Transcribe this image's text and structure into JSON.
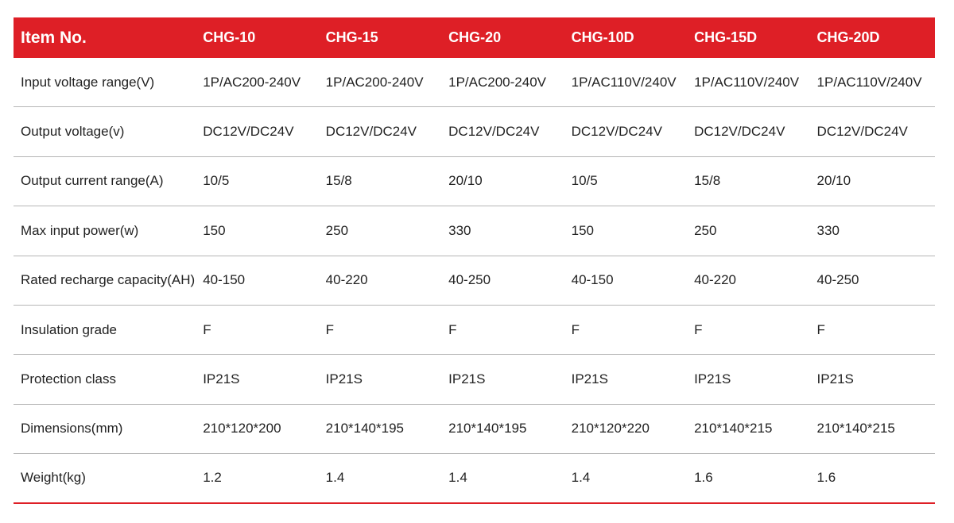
{
  "colors": {
    "accent": "#de1f26",
    "divider": "#b5b5b5",
    "text": "#222222"
  },
  "header": {
    "label": "Item No.",
    "models": [
      "CHG-10",
      "CHG-15",
      "CHG-20",
      "CHG-10D",
      "CHG-15D",
      "CHG-20D"
    ]
  },
  "rows": [
    {
      "label": "Input voltage range(V)",
      "values": [
        "1P/AC200-240V",
        "1P/AC200-240V",
        "1P/AC200-240V",
        "1P/AC110V/240V",
        "1P/AC110V/240V",
        "1P/AC110V/240V"
      ]
    },
    {
      "label": "Output voltage(v)",
      "values": [
        "DC12V/DC24V",
        "DC12V/DC24V",
        "DC12V/DC24V",
        "DC12V/DC24V",
        "DC12V/DC24V",
        "DC12V/DC24V"
      ]
    },
    {
      "label": "Output current range(A)",
      "values": [
        "10/5",
        "15/8",
        "20/10",
        "10/5",
        "15/8",
        "20/10"
      ]
    },
    {
      "label": "Max input power(w)",
      "values": [
        "150",
        "250",
        "330",
        "150",
        "250",
        "330"
      ]
    },
    {
      "label": "Rated recharge capacity(AH)",
      "values": [
        "40-150",
        "40-220",
        "40-250",
        "40-150",
        "40-220",
        "40-250"
      ]
    },
    {
      "label": "Insulation grade",
      "values": [
        "F",
        "F",
        "F",
        "F",
        "F",
        "F"
      ]
    },
    {
      "label": "Protection class",
      "values": [
        "IP21S",
        "IP21S",
        "IP21S",
        "IP21S",
        "IP21S",
        "IP21S"
      ]
    },
    {
      "label": "Dimensions(mm)",
      "values": [
        "210*120*200",
        "210*140*195",
        "210*140*195",
        "210*120*220",
        "210*140*215",
        "210*140*215"
      ]
    },
    {
      "label": "Weight(kg)",
      "values": [
        "1.2",
        "1.4",
        "1.4",
        "1.4",
        "1.6",
        "1.6"
      ]
    }
  ]
}
